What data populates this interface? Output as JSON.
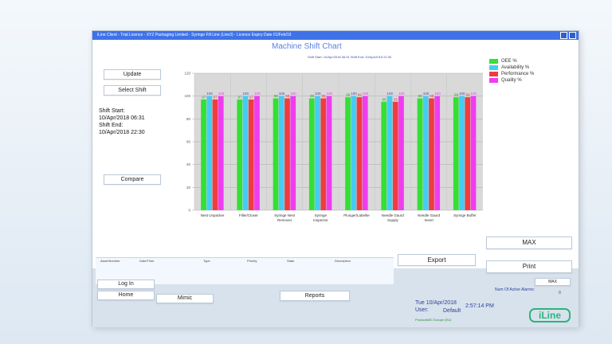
{
  "window": {
    "title": "iLine Client - Trial Licence - XYZ Packaging Limited - Syringe Fill Line (Line3) - Licence Expiry Date 01/Feb/19"
  },
  "left_panel": {
    "update": "Update",
    "select_shift": "Select Shift",
    "shift_start_label": "Shift Start:",
    "shift_start": "10/Apr/2018 06:31",
    "shift_end_label": "Shift End:",
    "shift_end": "10/Apr/2018 22:30",
    "compare": "Compare"
  },
  "buttons": {
    "max": "MAX",
    "export": "Export",
    "print": "Print",
    "max_small": "MAX",
    "log_in": "Log In",
    "home": "Home",
    "mimic": "Mimic",
    "reports": "Reports"
  },
  "alarm_table": {
    "columns": [
      "AlarmNumber",
      "Date/Time",
      "Type",
      "Priority",
      "State",
      "Description"
    ]
  },
  "status": {
    "active_alarms_label": "Num Of Active Alarms:",
    "active_alarms": "0",
    "date": "Tue 10/Apr/2018",
    "time": "2:57:14 PM",
    "user_label": "User:",
    "user": "Default",
    "product": "ProductABC Europe (EU)",
    "logo": "iLine"
  },
  "chart_data": {
    "type": "bar",
    "title": "Machine Shift Chart",
    "subtitle": "Shift Start: 10/Apr/2018 06:31  Shift End: 10/Apr/2018 22:30",
    "categories": [
      "Nest Unpacker",
      "Filler/Closer",
      "Syringe Nest Remover",
      "Syringe Inspector",
      "Plunger/Labeller",
      "Needle Gaurd Supply",
      "Needle Gaurd Insert",
      "Syringe Buffer"
    ],
    "series": [
      {
        "name": "OEE %",
        "color": "#33e033",
        "values": [
          97,
          97,
          98,
          98,
          99,
          95,
          98,
          99
        ]
      },
      {
        "name": "Availability %",
        "color": "#44ccf4",
        "values": [
          100,
          100,
          100,
          100,
          100,
          100,
          100,
          100
        ]
      },
      {
        "name": "Performance %",
        "color": "#f03c3c",
        "values": [
          97,
          97,
          98,
          98,
          99,
          95,
          98,
          99
        ]
      },
      {
        "name": "Quality %",
        "color": "#f03cf0",
        "values": [
          100,
          100,
          100,
          100,
          100,
          100,
          100,
          100
        ]
      }
    ],
    "ylim": [
      0,
      120
    ],
    "yticks": [
      0,
      20,
      40,
      60,
      80,
      100,
      120
    ],
    "grid": true,
    "legend": "top-right"
  }
}
